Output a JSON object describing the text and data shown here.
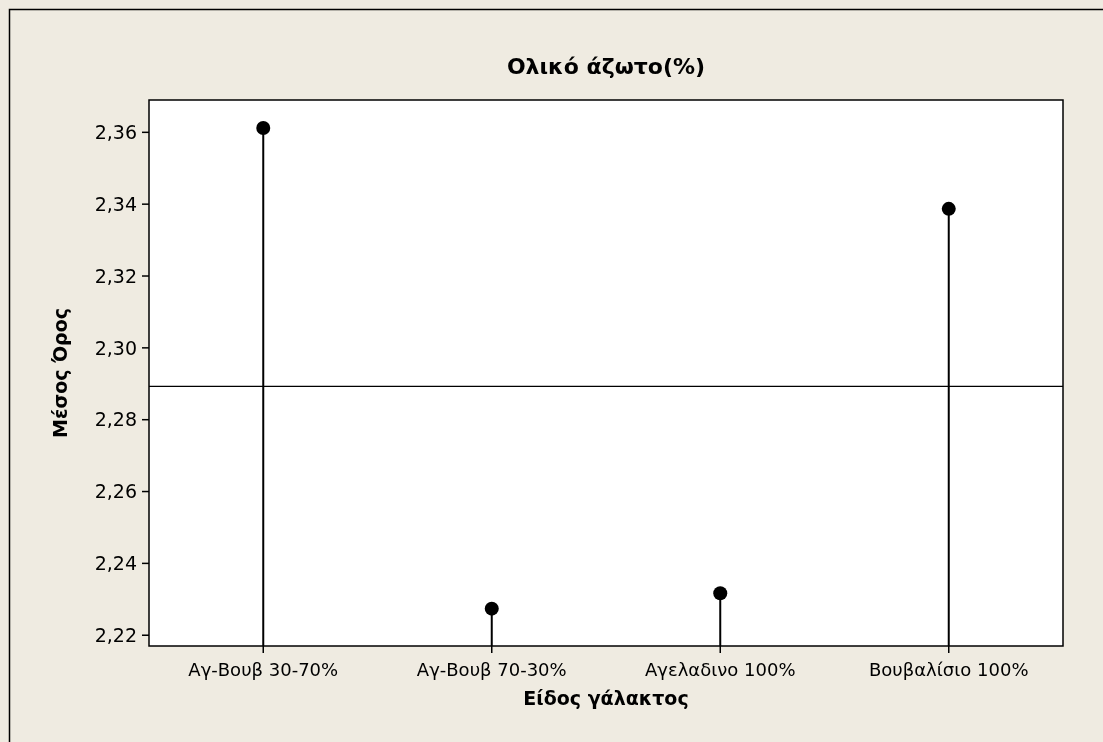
{
  "chart_data": {
    "type": "lollipop",
    "title": "Ολικό άζωτο(%)",
    "xlabel": "Είδος γάλακτος",
    "ylabel": "Μέσος Όρος",
    "categories": [
      "Αγ-Βουβ 30-70%",
      "Αγ-Βουβ 70-30%",
      "Αγελαδινο 100%",
      "Βουβαλίσιο 100%"
    ],
    "values": [
      2.3612,
      2.2274,
      2.2317,
      2.3387
    ],
    "color": "#000000",
    "marker": "circle",
    "ylim": [
      2.217,
      2.369
    ],
    "yticks": [
      {
        "value": 2.22,
        "label": "2,22"
      },
      {
        "value": 2.24,
        "label": "2,24"
      },
      {
        "value": 2.26,
        "label": "2,26"
      },
      {
        "value": 2.28,
        "label": "2,28"
      },
      {
        "value": 2.3,
        "label": "2,30"
      },
      {
        "value": 2.32,
        "label": "2,32"
      },
      {
        "value": 2.34,
        "label": "2,34"
      },
      {
        "value": 2.36,
        "label": "2,36"
      }
    ],
    "ref_lines": [
      {
        "axis": "y",
        "value": 2.2893,
        "color": "#000000"
      }
    ]
  }
}
